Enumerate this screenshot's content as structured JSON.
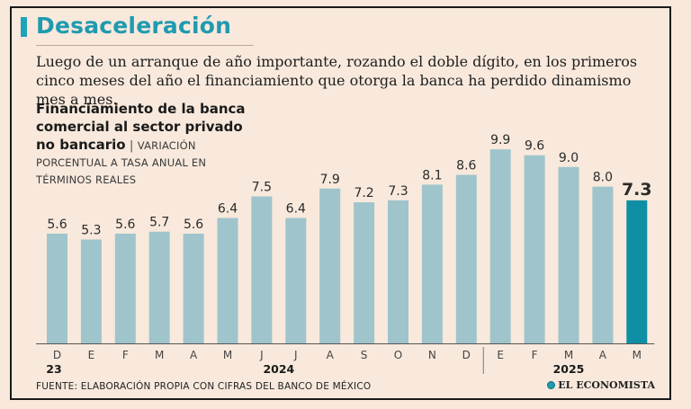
{
  "header": {
    "title": "Desaceleración",
    "lede": "Luego de un arranque de año importante, rozando el doble dígito, en los primeros cinco meses del año el financiamiento que otorga la banca ha perdido dinamismo mes a mes."
  },
  "chart_title": {
    "main": "Financiamiento de la banca comercial al sector privado no bancario",
    "separator": "|",
    "subtitle": "VARIACIÓN PORCENTUAL A TASA ANUAL EN TÉRMINOS REALES"
  },
  "footer": {
    "source": "FUENTE: ELABORACIÓN PROPIA CON CIFRAS DEL BANCO DE MÉXICO",
    "brand": "EL ECONOMISTA"
  },
  "colors": {
    "bar": "#9fc4cc",
    "highlight": "#0f8fa3",
    "accent": "#1fa3b8",
    "background": "#f8e9dc"
  },
  "chart_data": {
    "type": "bar",
    "categories": [
      "D",
      "E",
      "F",
      "M",
      "A",
      "M",
      "J",
      "J",
      "A",
      "S",
      "O",
      "N",
      "D",
      "E",
      "F",
      "M",
      "A",
      "M"
    ],
    "values": [
      5.6,
      5.3,
      5.6,
      5.7,
      5.6,
      6.4,
      7.5,
      6.4,
      7.9,
      7.2,
      7.3,
      8.1,
      8.6,
      9.9,
      9.6,
      9.0,
      8.0,
      7.3
    ],
    "value_labels": [
      "5.6",
      "5.3",
      "5.6",
      "5.7",
      "5.6",
      "6.4",
      "7.5",
      "6.4",
      "7.9",
      "7.2",
      "7.3",
      "8.1",
      "8.6",
      "9.9",
      "9.6",
      "9.0",
      "8.0",
      "7.3"
    ],
    "highlight_index": 17,
    "year_groups": [
      {
        "label": "23",
        "start": 0,
        "end": 0
      },
      {
        "label": "2024",
        "start": 1,
        "end": 12
      },
      {
        "label": "2025",
        "start": 13,
        "end": 17
      }
    ],
    "ylim": [
      0,
      10
    ],
    "grid": false,
    "xlabel": "",
    "ylabel": ""
  }
}
